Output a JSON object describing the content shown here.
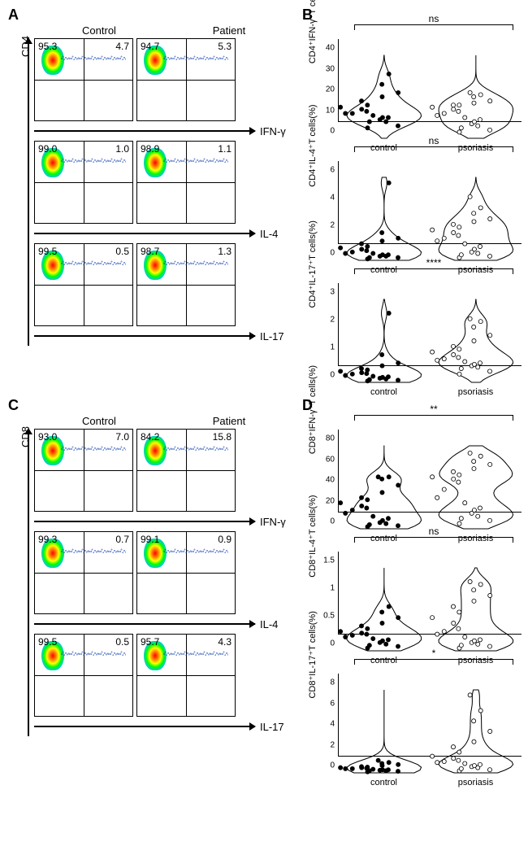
{
  "panels": {
    "A": {
      "label": "A",
      "yaxis": "CD4",
      "col_headers": [
        "Control",
        "Patient"
      ],
      "rows": [
        {
          "marker": "IFN-γ",
          "control": {
            "tl": "95.3",
            "tr": "4.7"
          },
          "patient": {
            "tl": "94.7",
            "tr": "5.3"
          }
        },
        {
          "marker": "IL-4",
          "control": {
            "tl": "99.0",
            "tr": "1.0"
          },
          "patient": {
            "tl": "98.9",
            "tr": "1.1"
          }
        },
        {
          "marker": "IL-17",
          "control": {
            "tl": "99.5",
            "tr": "0.5"
          },
          "patient": {
            "tl": "98.7",
            "tr": "1.3"
          }
        }
      ]
    },
    "B": {
      "label": "B",
      "plots": [
        {
          "ylabel": "CD4⁺IFN-γ⁺T cells(%)",
          "sig": "ns",
          "ylim": [
            0,
            40
          ],
          "yticks": [
            0,
            10,
            20,
            30,
            40
          ],
          "groups": [
            {
              "name": "control",
              "fill": "#000",
              "points": [
                5,
                6,
                8,
                8,
                9,
                10,
                10,
                11,
                12,
                12,
                13,
                14,
                15,
                16,
                18,
                20,
                22,
                26,
                31
              ]
            },
            {
              "name": "psoriasis",
              "fill": "none",
              "points": [
                3,
                4,
                5,
                6,
                7,
                8,
                9,
                10,
                11,
                12,
                13,
                14,
                15,
                16,
                16,
                17,
                18,
                20,
                21,
                22
              ]
            }
          ]
        },
        {
          "ylabel": "CD4⁺IL-4⁺T cells(%)",
          "sig": "ns",
          "ylim": [
            0,
            6
          ],
          "yticks": [
            0,
            2,
            4,
            6
          ],
          "groups": [
            {
              "name": "control",
              "fill": "#000",
              "points": [
                0.1,
                0.2,
                0.2,
                0.3,
                0.3,
                0.4,
                0.4,
                0.5,
                0.5,
                0.6,
                0.7,
                0.8,
                0.9,
                1.0,
                1.2,
                1.4,
                1.6,
                2.0,
                5.6
              ]
            },
            {
              "name": "psoriasis",
              "fill": "none",
              "points": [
                0.2,
                0.3,
                0.4,
                0.5,
                0.6,
                0.8,
                1.0,
                1.2,
                1.4,
                1.6,
                1.8,
                2.0,
                2.2,
                2.4,
                2.6,
                2.8,
                3.0,
                3.4,
                3.8,
                4.6
              ]
            }
          ]
        },
        {
          "ylabel": "CD4⁺IL-17⁺T cells(%)",
          "sig": "****",
          "ylim": [
            0,
            3
          ],
          "yticks": [
            0,
            1,
            2,
            3
          ],
          "groups": [
            {
              "name": "control",
              "fill": "#000",
              "points": [
                0.05,
                0.08,
                0.1,
                0.12,
                0.15,
                0.18,
                0.2,
                0.22,
                0.25,
                0.3,
                0.32,
                0.35,
                0.4,
                0.45,
                0.5,
                0.6,
                0.7,
                1.0,
                2.5
              ]
            },
            {
              "name": "psoriasis",
              "fill": "none",
              "points": [
                0.3,
                0.4,
                0.5,
                0.55,
                0.6,
                0.65,
                0.7,
                0.75,
                0.8,
                0.85,
                0.9,
                1.0,
                1.1,
                1.2,
                1.3,
                1.5,
                1.7,
                2.0,
                2.2,
                2.3
              ]
            }
          ]
        }
      ]
    },
    "C": {
      "label": "C",
      "yaxis": "CD8",
      "col_headers": [
        "Control",
        "Patient"
      ],
      "rows": [
        {
          "marker": "IFN-γ",
          "control": {
            "tl": "93.0",
            "tr": "7.0"
          },
          "patient": {
            "tl": "84.2",
            "tr": "15.8"
          }
        },
        {
          "marker": "IL-4",
          "control": {
            "tl": "99.3",
            "tr": "0.7"
          },
          "patient": {
            "tl": "99.1",
            "tr": "0.9"
          }
        },
        {
          "marker": "IL-17",
          "control": {
            "tl": "99.5",
            "tr": "0.5"
          },
          "patient": {
            "tl": "95.7",
            "tr": "4.3"
          }
        }
      ]
    },
    "D": {
      "label": "D",
      "plots": [
        {
          "ylabel": "CD8⁺IFN-γ⁺T cells(%)",
          "sig": "**",
          "ylim": [
            0,
            80
          ],
          "yticks": [
            0,
            20,
            40,
            60,
            80
          ],
          "groups": [
            {
              "name": "control",
              "fill": "#000",
              "points": [
                2,
                3,
                4,
                5,
                6,
                8,
                10,
                12,
                15,
                18,
                20,
                22,
                25,
                28,
                30,
                35,
                42,
                48,
                50,
                50
              ]
            },
            {
              "name": "psoriasis",
              "fill": "none",
              "points": [
                5,
                8,
                10,
                12,
                15,
                18,
                20,
                25,
                30,
                38,
                45,
                48,
                50,
                52,
                55,
                58,
                62,
                65,
                70,
                73
              ]
            }
          ]
        },
        {
          "ylabel": "CD8⁺IL-4⁺T cells(%)",
          "sig": "ns",
          "ylim": [
            0,
            1.5
          ],
          "yticks": [
            0,
            0.5,
            1.0,
            1.5
          ],
          "groups": [
            {
              "name": "control",
              "fill": "#000",
              "points": [
                0.05,
                0.08,
                0.1,
                0.12,
                0.15,
                0.18,
                0.2,
                0.22,
                0.25,
                0.28,
                0.3,
                0.32,
                0.35,
                0.4,
                0.45,
                0.5,
                0.6,
                0.7,
                0.8
              ]
            },
            {
              "name": "psoriasis",
              "fill": "none",
              "points": [
                0.05,
                0.08,
                0.1,
                0.12,
                0.15,
                0.18,
                0.2,
                0.25,
                0.3,
                0.35,
                0.4,
                0.5,
                0.6,
                0.7,
                0.8,
                0.9,
                1.0,
                1.1,
                1.2,
                1.25
              ]
            }
          ]
        },
        {
          "ylabel": "CD8⁺IL-17⁺T cells(%)",
          "sig": "*",
          "ylim": [
            0,
            8
          ],
          "yticks": [
            0,
            2,
            4,
            6,
            8
          ],
          "groups": [
            {
              "name": "control",
              "fill": "#000",
              "points": [
                0.1,
                0.15,
                0.2,
                0.2,
                0.25,
                0.3,
                0.3,
                0.35,
                0.4,
                0.4,
                0.45,
                0.5,
                0.5,
                0.55,
                0.6,
                0.7,
                0.8,
                0.9,
                1.0,
                1.2
              ]
            },
            {
              "name": "psoriasis",
              "fill": "none",
              "points": [
                0.2,
                0.3,
                0.4,
                0.5,
                0.6,
                0.7,
                0.8,
                0.9,
                1.0,
                1.1,
                1.2,
                1.4,
                1.6,
                2.0,
                2.5,
                3.0,
                4.0,
                5.0,
                6.0,
                7.5
              ]
            }
          ]
        }
      ]
    }
  },
  "colors": {
    "density_gradient": [
      "#0000ff",
      "#00bfff",
      "#00ff00",
      "#ffff00",
      "#ff7f00",
      "#ff0000"
    ],
    "axis": "#000000",
    "background": "#ffffff",
    "control_fill": "#000000",
    "psoriasis_fill": "#ffffff",
    "psoriasis_stroke": "#000000"
  },
  "typography": {
    "panel_label_fontsize": 18,
    "header_fontsize": 13,
    "number_fontsize": 12,
    "axis_label_fontsize": 11,
    "tick_fontsize": 10
  }
}
